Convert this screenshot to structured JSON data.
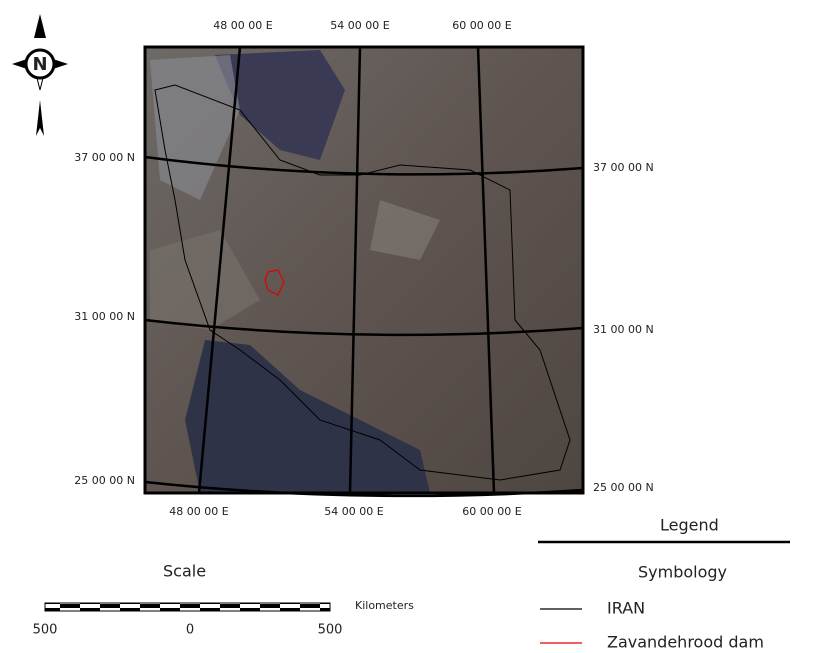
{
  "north_arrow": {
    "label": "N"
  },
  "grid_labels": {
    "top": [
      "48 00 00 E",
      "54 00 00 E",
      "60 00 00 E"
    ],
    "bottom": [
      "48 00 00 E",
      "54 00 00 E",
      "60 00 00 E"
    ],
    "left": [
      "37 00 00 N",
      "31 00 00 N",
      "25 00 00 N"
    ],
    "right": [
      "37 00 00 N",
      "31 00 00 N",
      "25 00 00 N"
    ]
  },
  "legend": {
    "title": "Legend",
    "subtitle": "Symbology",
    "items": [
      {
        "label": "IRAN",
        "color": "#000000"
      },
      {
        "label": "Zavandehrood dam",
        "color": "#e00000"
      }
    ]
  },
  "scale": {
    "title": "Scale",
    "unit": "Kilometers",
    "ticks": [
      "500",
      "0",
      "500"
    ]
  }
}
